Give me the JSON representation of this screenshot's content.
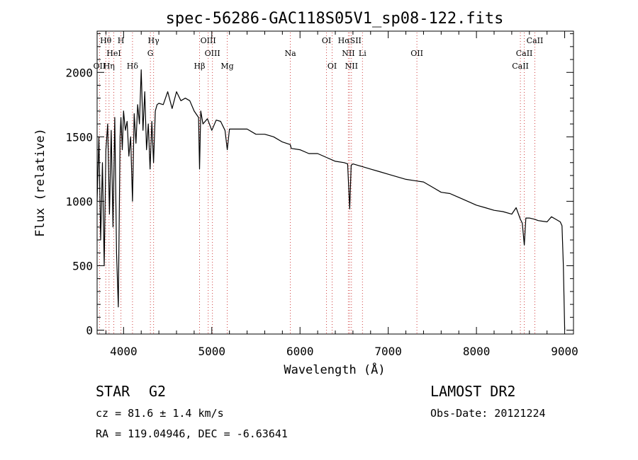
{
  "chart_data": {
    "type": "line",
    "title": "spec-56286-GAC118S05V1_sp08-122.fits",
    "xlabel": "Wavelength (Å)",
    "ylabel": "Flux (relative)",
    "xlim": [
      3700,
      9100
    ],
    "ylim": [
      -30,
      2320
    ],
    "xticks": [
      4000,
      5000,
      6000,
      7000,
      8000,
      9000
    ],
    "xtick_labels": [
      "4000",
      "5000",
      "6000",
      "7000",
      "8000",
      "9000"
    ],
    "yticks": [
      0,
      500,
      1000,
      1500,
      2000
    ],
    "ytick_labels": [
      "0",
      "500",
      "1000",
      "1500",
      "2000"
    ],
    "grid": false,
    "series": [
      {
        "x": [
          3700,
          3720,
          3740,
          3760,
          3780,
          3800,
          3820,
          3840,
          3860,
          3880,
          3900,
          3920,
          3940,
          3960,
          3970,
          3985,
          4000,
          4020,
          4040,
          4060,
          4080,
          4101,
          4120,
          4140,
          4160,
          4180,
          4200,
          4220,
          4240,
          4260,
          4280,
          4300,
          4320,
          4340,
          4360,
          4380,
          4400,
          4450,
          4500,
          4550,
          4600,
          4650,
          4700,
          4750,
          4800,
          4850,
          4861,
          4875,
          4900,
          4950,
          5000,
          5050,
          5100,
          5150,
          5175,
          5200,
          5250,
          5300,
          5400,
          5500,
          5600,
          5700,
          5800,
          5890,
          5900,
          6000,
          6100,
          6200,
          6300,
          6400,
          6500,
          6540,
          6563,
          6580,
          6600,
          6700,
          6800,
          6900,
          7000,
          7100,
          7200,
          7300,
          7400,
          7500,
          7600,
          7700,
          7800,
          7900,
          8000,
          8100,
          8200,
          8300,
          8400,
          8450,
          8498,
          8520,
          8542,
          8560,
          8600,
          8662,
          8700,
          8800,
          8850,
          8900,
          8950,
          8970,
          8985,
          9000
        ],
        "y": [
          1000,
          1500,
          700,
          1300,
          500,
          1400,
          1600,
          900,
          1550,
          800,
          1650,
          600,
          180,
          1500,
          1650,
          1400,
          1700,
          1550,
          1620,
          1350,
          1500,
          1000,
          1680,
          1450,
          1750,
          1600,
          2020,
          1550,
          1850,
          1400,
          1600,
          1250,
          1620,
          1300,
          1700,
          1750,
          1760,
          1750,
          1850,
          1720,
          1850,
          1780,
          1800,
          1780,
          1700,
          1650,
          1250,
          1700,
          1600,
          1640,
          1550,
          1630,
          1620,
          1550,
          1400,
          1560,
          1560,
          1560,
          1560,
          1520,
          1520,
          1500,
          1460,
          1440,
          1410,
          1400,
          1370,
          1370,
          1340,
          1310,
          1300,
          1290,
          940,
          1280,
          1290,
          1270,
          1250,
          1230,
          1210,
          1190,
          1170,
          1160,
          1150,
          1110,
          1070,
          1060,
          1030,
          1000,
          970,
          950,
          930,
          920,
          900,
          950,
          860,
          830,
          660,
          870,
          870,
          860,
          850,
          840,
          880,
          860,
          840,
          810,
          500,
          0
        ]
      }
    ],
    "lines": [
      {
        "label": "Hθ",
        "x": 3798,
        "row": 0
      },
      {
        "label": "H",
        "x": 3970,
        "row": 0
      },
      {
        "label": "Hγ",
        "x": 4340,
        "row": 0
      },
      {
        "label": "OIII",
        "x": 4959,
        "row": 0
      },
      {
        "label": "OI",
        "x": 6300,
        "row": 0
      },
      {
        "label": "HαSII",
        "x": 6563,
        "row": 0
      },
      {
        "label": "CaII",
        "x": 8662,
        "row": 0
      },
      {
        "label": "HeI",
        "x": 3889,
        "row": 1
      },
      {
        "label": "G",
        "x": 4304,
        "row": 1
      },
      {
        "label": "OIII",
        "x": 5007,
        "row": 1
      },
      {
        "label": "Na",
        "x": 5890,
        "row": 1
      },
      {
        "label": "NII",
        "x": 6548,
        "row": 1
      },
      {
        "label": "Li",
        "x": 6708,
        "row": 1
      },
      {
        "label": "OII",
        "x": 7325,
        "row": 1
      },
      {
        "label": "CaII",
        "x": 8542,
        "row": 1
      },
      {
        "label": "OII",
        "x": 3727,
        "row": 2
      },
      {
        "label": "Hη",
        "x": 3835,
        "row": 2
      },
      {
        "label": "Hδ",
        "x": 4101,
        "row": 2
      },
      {
        "label": "Hβ",
        "x": 4861,
        "row": 2
      },
      {
        "label": "Mg",
        "x": 5175,
        "row": 2
      },
      {
        "label": "OI",
        "x": 6364,
        "row": 2
      },
      {
        "label": "NII",
        "x": 6583,
        "row": 2
      },
      {
        "label": "CaII",
        "x": 8498,
        "row": 2
      }
    ],
    "line_marker_x": [
      3727,
      3798,
      3835,
      3889,
      3970,
      4101,
      4304,
      4340,
      4861,
      4959,
      5007,
      5175,
      5890,
      6300,
      6364,
      6548,
      6563,
      6583,
      6708,
      7325,
      8498,
      8542,
      8662
    ],
    "colors": {
      "spectrum": "#000000",
      "line_marker": "#d04040"
    }
  },
  "info": {
    "class": "STAR",
    "subclass": "G2",
    "survey": "LAMOST DR2",
    "velocity": "cz = 81.6 ± 1.4 km/s",
    "obs_date": "Obs-Date: 20121224",
    "coords": "RA = 119.04946, DEC =  -6.63641"
  }
}
